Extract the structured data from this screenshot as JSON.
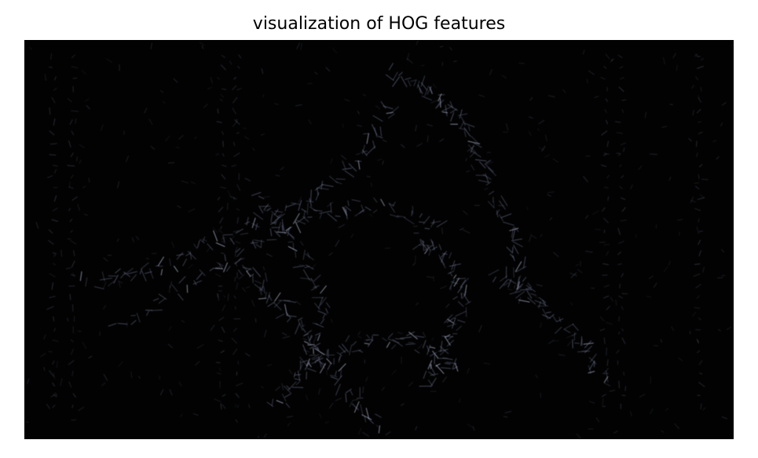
{
  "figure": {
    "title": "visualization of HOG features"
  },
  "image": {
    "description_icon": "hog-visualization-image",
    "background_color": "#020202",
    "stroke_color": "#7f86a8",
    "highlight_color": "#b9bfd8"
  }
}
